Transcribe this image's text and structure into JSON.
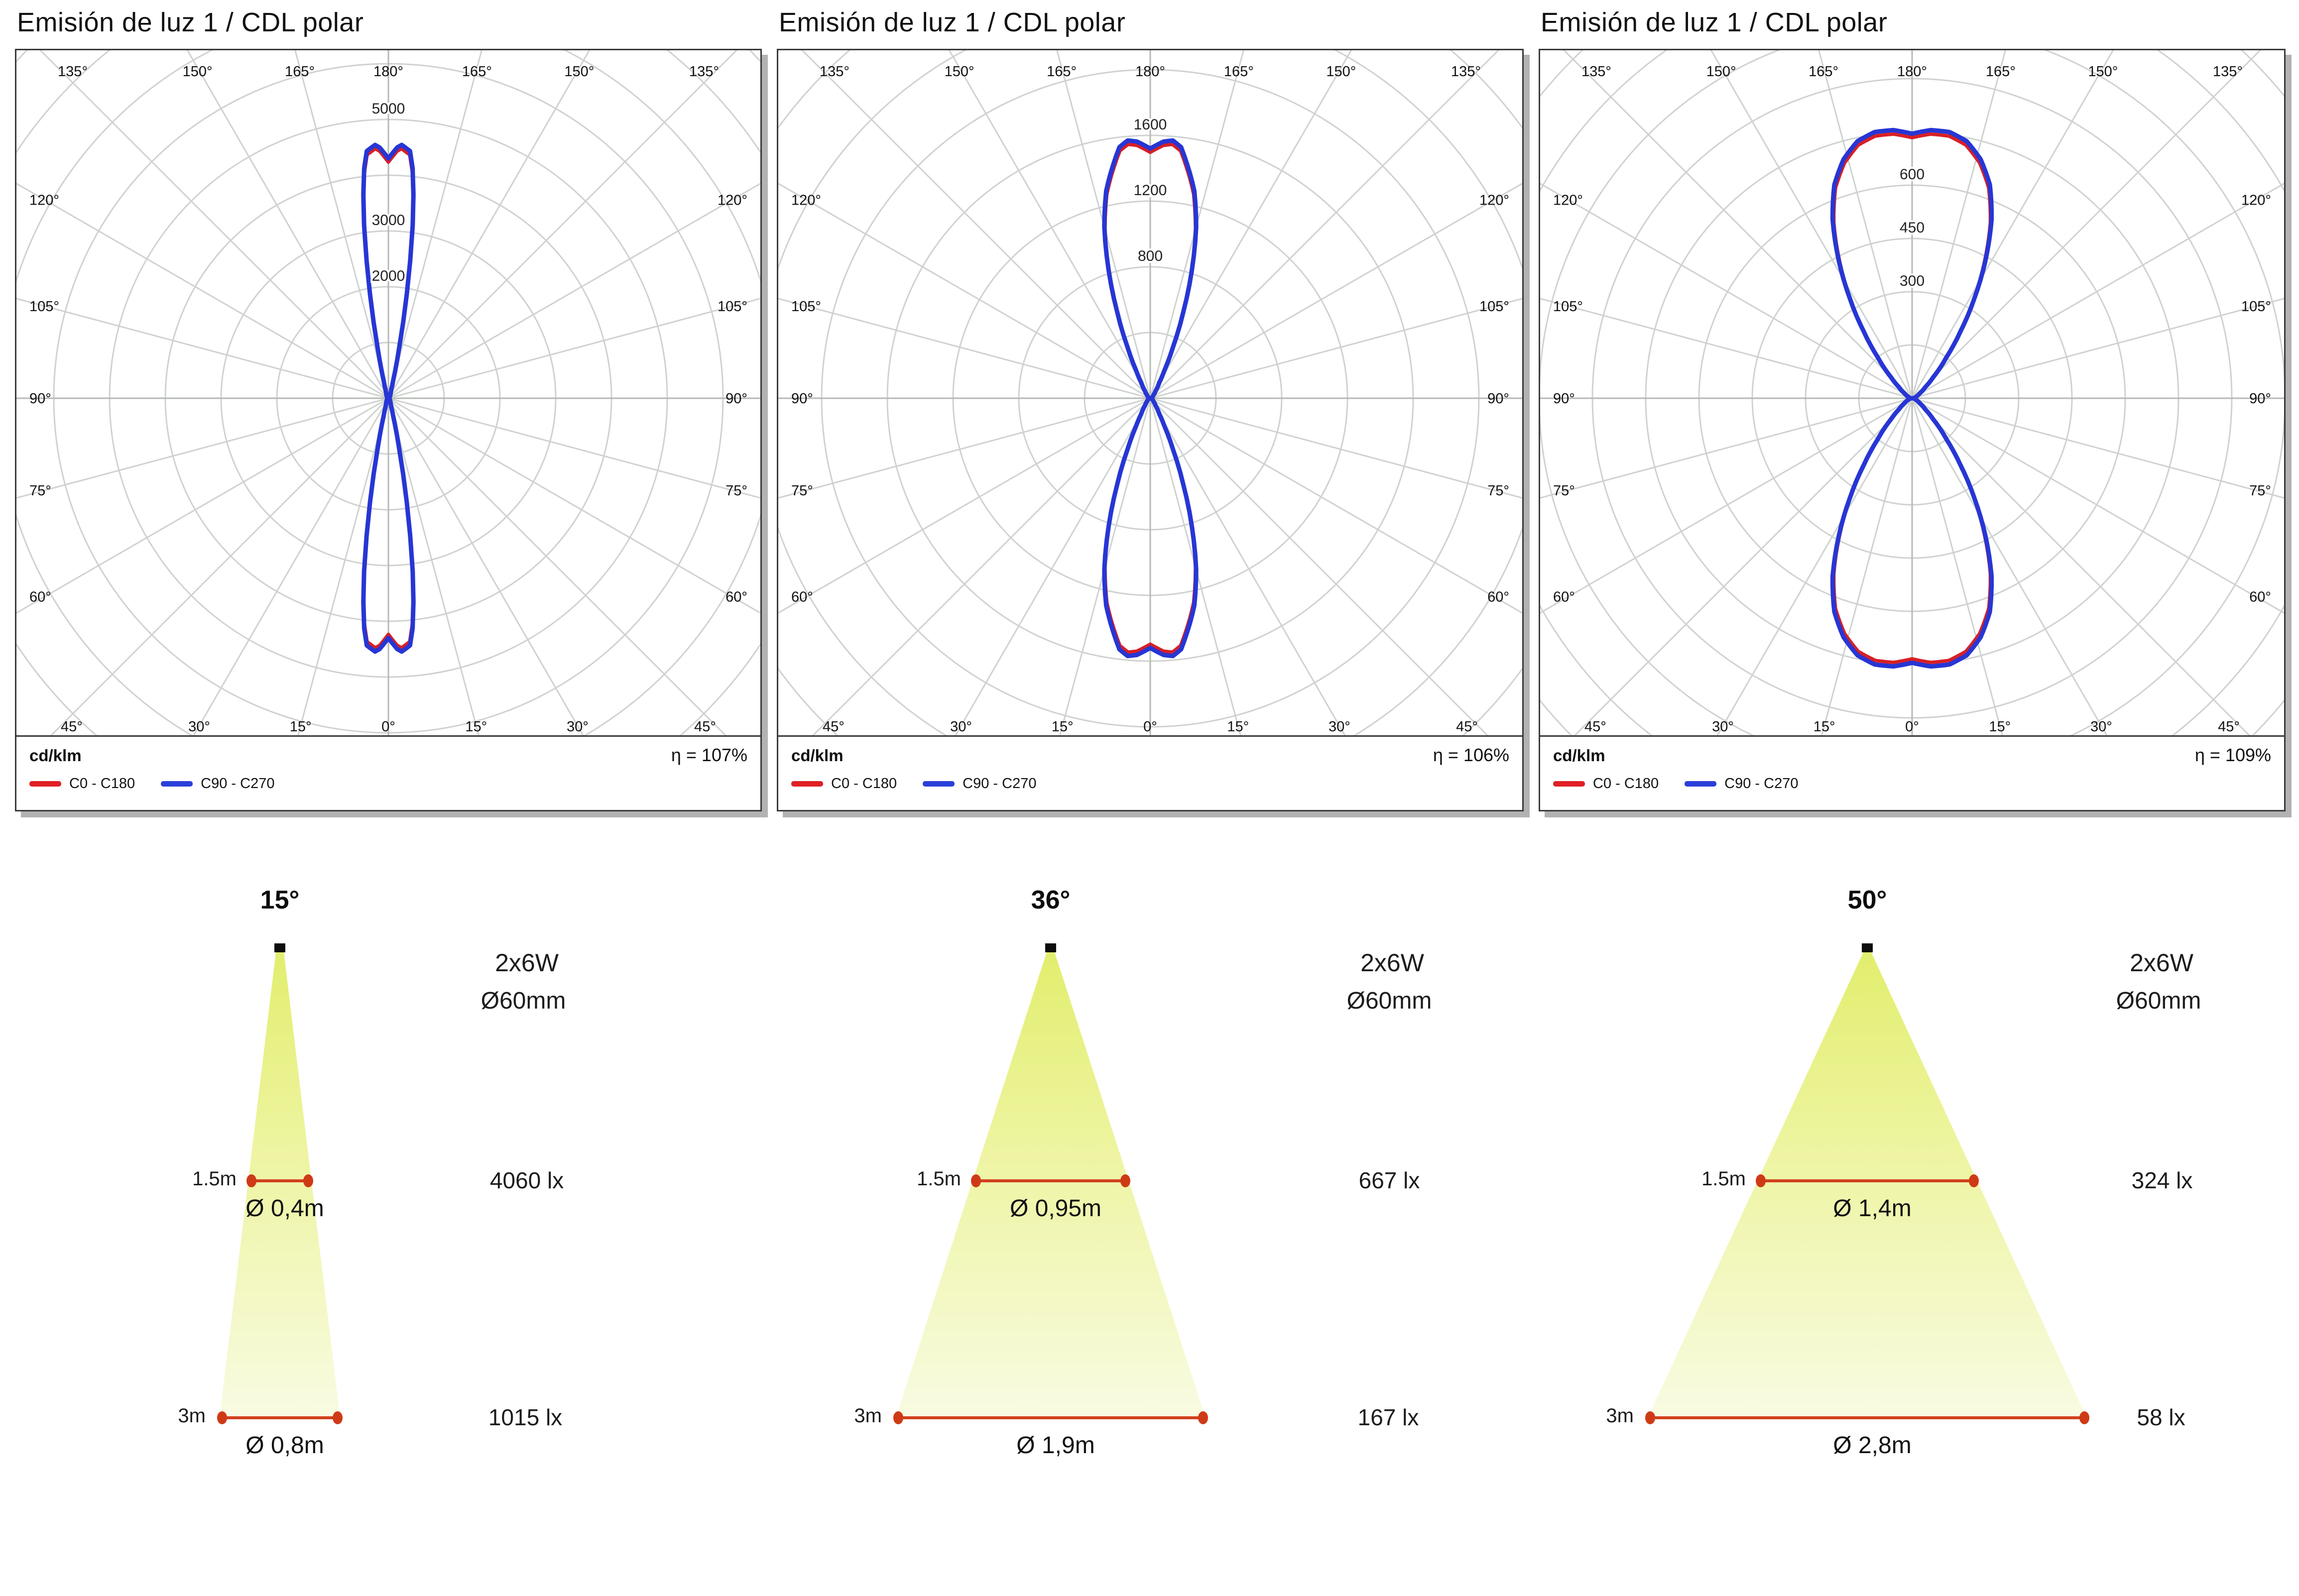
{
  "page": {
    "background": "#ffffff"
  },
  "colors": {
    "curve_blue": "#2736d4",
    "curve_red": "#d81f26",
    "legend_blue": "#2b3fd9",
    "legend_red": "#e01f26",
    "grid": "#cfd3cf",
    "axis": "#b5bab5",
    "cone_top": "#e2ee6e",
    "cone_mid": "#edf49e",
    "cone_bottom": "#f8fbe2",
    "measure_red": "#d2401e",
    "dot_red": "#cf3a16"
  },
  "chart_data": [
    {
      "type": "polar-line",
      "title": "Emisión de luz 1 / CDL polar",
      "unit": "cd/klm",
      "efficiency": "η = 107%",
      "legend": [
        {
          "label": "C0 - C180",
          "color": "#e01f26"
        },
        {
          "label": "C90 - C270",
          "color": "#2b3fd9"
        }
      ],
      "rings": {
        "step": 1000,
        "max": 5000,
        "labeled": [
          2000,
          3000,
          5000
        ]
      },
      "angles": {
        "top": [
          "135°",
          "150°",
          "165°",
          "180°",
          "165°",
          "150°",
          "135°"
        ],
        "left": [
          "120°",
          "105°",
          "90°",
          "75°",
          "60°"
        ],
        "right": [
          "120°",
          "105°",
          "90°",
          "75°",
          "60°"
        ],
        "bottom": [
          "45°",
          "30°",
          "15°",
          "0°",
          "15°",
          "30°",
          "45°"
        ]
      },
      "series": [
        {
          "name": "C0 - C180",
          "color": "#d81f26",
          "same_as": 1,
          "scale": 0.985
        },
        {
          "name": "C90 - C270",
          "color": "#2736d4",
          "points": [
            [
              0,
              4300
            ],
            [
              2,
              4500
            ],
            [
              3,
              4550
            ],
            [
              5,
              4450
            ],
            [
              6,
              4150
            ],
            [
              7.5,
              3450
            ],
            [
              9,
              2500
            ],
            [
              10.5,
              1600
            ],
            [
              12,
              950
            ],
            [
              13.5,
              560
            ],
            [
              15,
              330
            ],
            [
              18,
              170
            ],
            [
              22,
              110
            ],
            [
              30,
              70
            ],
            [
              40,
              45
            ],
            [
              55,
              28
            ],
            [
              70,
              15
            ],
            [
              82,
              6
            ],
            [
              90,
              0
            ]
          ]
        }
      ]
    },
    {
      "type": "polar-line",
      "title": "Emisión de luz 1 / CDL polar",
      "unit": "cd/klm",
      "efficiency": "η = 106%",
      "legend": [
        {
          "label": "C0 - C180",
          "color": "#e01f26"
        },
        {
          "label": "C90 - C270",
          "color": "#2b3fd9"
        }
      ],
      "rings": {
        "step": 400,
        "max": 1600,
        "labeled": [
          800,
          1200,
          1600
        ]
      },
      "angles": {
        "top": [
          "135°",
          "150°",
          "165°",
          "180°",
          "165°",
          "150°",
          "135°"
        ],
        "left": [
          "120°",
          "105°",
          "90°",
          "75°",
          "60°"
        ],
        "right": [
          "120°",
          "105°",
          "90°",
          "75°",
          "60°"
        ],
        "bottom": [
          "45°",
          "30°",
          "15°",
          "0°",
          "15°",
          "30°",
          "45°"
        ]
      },
      "series": [
        {
          "name": "C0 - C180",
          "color": "#d81f26",
          "same_as": 1,
          "scale": 0.985
        },
        {
          "name": "C90 - C270",
          "color": "#2736d4",
          "points": [
            [
              0,
              1520
            ],
            [
              3,
              1565
            ],
            [
              5,
              1575
            ],
            [
              7,
              1540
            ],
            [
              9,
              1440
            ],
            [
              12,
              1290
            ],
            [
              15,
              1080
            ],
            [
              18,
              820
            ],
            [
              21,
              560
            ],
            [
              24,
              340
            ],
            [
              27,
              190
            ],
            [
              30,
              110
            ],
            [
              36,
              55
            ],
            [
              45,
              28
            ],
            [
              60,
              14
            ],
            [
              75,
              7
            ],
            [
              90,
              0
            ]
          ]
        }
      ]
    },
    {
      "type": "polar-line",
      "title": "Emisión de luz 1 / CDL polar",
      "unit": "cd/klm",
      "efficiency": "η = 109%",
      "legend": [
        {
          "label": "C0 - C180",
          "color": "#e01f26"
        },
        {
          "label": "C90 - C270",
          "color": "#2b3fd9"
        }
      ],
      "rings": {
        "step": 150,
        "max": 600,
        "labeled": [
          300,
          450,
          600
        ]
      },
      "angles": {
        "top": [
          "135°",
          "150°",
          "165°",
          "180°",
          "165°",
          "150°",
          "135°"
        ],
        "left": [
          "120°",
          "105°",
          "90°",
          "75°",
          "60°"
        ],
        "right": [
          "120°",
          "105°",
          "90°",
          "75°",
          "60°"
        ],
        "bottom": [
          "45°",
          "30°",
          "15°",
          "0°",
          "15°",
          "30°",
          "45°"
        ]
      },
      "series": [
        {
          "name": "C0 - C180",
          "color": "#d81f26",
          "same_as": 1,
          "scale": 0.985
        },
        {
          "name": "C90 - C270",
          "color": "#2736d4",
          "points": [
            [
              0,
              745
            ],
            [
              4,
              757
            ],
            [
              8,
              757
            ],
            [
              12,
              740
            ],
            [
              16,
              700
            ],
            [
              20,
              640
            ],
            [
              24,
              550
            ],
            [
              28,
              440
            ],
            [
              32,
              330
            ],
            [
              36,
              230
            ],
            [
              40,
              150
            ],
            [
              45,
              85
            ],
            [
              50,
              48
            ],
            [
              58,
              24
            ],
            [
              68,
              12
            ],
            [
              78,
              6
            ],
            [
              90,
              0
            ]
          ]
        }
      ]
    },
    {
      "type": "cone-diagram",
      "beam_angle": "15°",
      "power": "2x6W",
      "fixture_diameter": "Ø60mm",
      "measurements": [
        {
          "distance": "1.5m",
          "diameter": "Ø 0,4m",
          "illuminance": "4060 lx"
        },
        {
          "distance": "3m",
          "diameter": "Ø 0,8m",
          "illuminance": "1015 lx"
        }
      ]
    },
    {
      "type": "cone-diagram",
      "beam_angle": "36°",
      "power": "2x6W",
      "fixture_diameter": "Ø60mm",
      "measurements": [
        {
          "distance": "1.5m",
          "diameter": "Ø 0,95m",
          "illuminance": "667 lx"
        },
        {
          "distance": "3m",
          "diameter": "Ø 1,9m",
          "illuminance": "167 lx"
        }
      ]
    },
    {
      "type": "cone-diagram",
      "beam_angle": "50°",
      "power": "2x6W",
      "fixture_diameter": "Ø60mm",
      "measurements": [
        {
          "distance": "1.5m",
          "diameter": "Ø 1,4m",
          "illuminance": "324 lx"
        },
        {
          "distance": "3m",
          "diameter": "Ø 2,8m",
          "illuminance": "58 lx"
        }
      ]
    }
  ]
}
